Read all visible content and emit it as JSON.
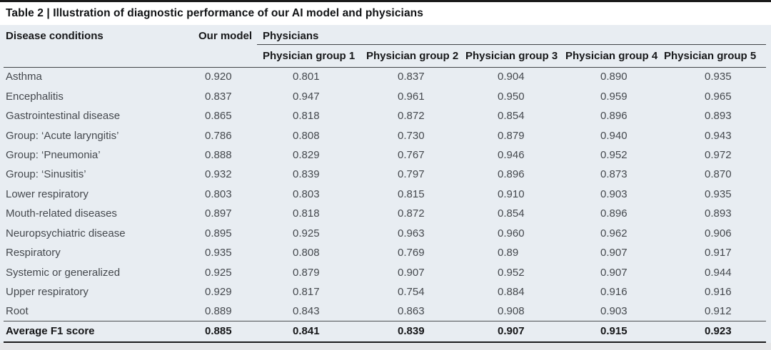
{
  "chart_data": {
    "type": "table",
    "title": "Table 2 | Illustration of diagnostic performance of our AI model and physicians",
    "columns": {
      "disease": "Disease conditions",
      "our_model": "Our model",
      "physicians": "Physicians",
      "physician_groups": [
        "Physician group 1",
        "Physician group 2",
        "Physician group 3",
        "Physician group 4",
        "Physician group 5"
      ]
    },
    "rows": [
      {
        "condition": "Asthma",
        "values": [
          "0.920",
          "0.801",
          "0.837",
          "0.904",
          "0.890",
          "0.935"
        ]
      },
      {
        "condition": "Encephalitis",
        "values": [
          "0.837",
          "0.947",
          "0.961",
          "0.950",
          "0.959",
          "0.965"
        ]
      },
      {
        "condition": "Gastrointestinal disease",
        "values": [
          "0.865",
          "0.818",
          "0.872",
          "0.854",
          "0.896",
          "0.893"
        ]
      },
      {
        "condition": "Group: ‘Acute laryngitis’",
        "values": [
          "0.786",
          "0.808",
          "0.730",
          "0.879",
          "0.940",
          "0.943"
        ]
      },
      {
        "condition": "Group: ‘Pneumonia’",
        "values": [
          "0.888",
          "0.829",
          "0.767",
          "0.946",
          "0.952",
          "0.972"
        ]
      },
      {
        "condition": "Group: ‘Sinusitis’",
        "values": [
          "0.932",
          "0.839",
          "0.797",
          "0.896",
          "0.873",
          "0.870"
        ]
      },
      {
        "condition": "Lower respiratory",
        "values": [
          "0.803",
          "0.803",
          "0.815",
          "0.910",
          "0.903",
          "0.935"
        ]
      },
      {
        "condition": "Mouth-related diseases",
        "values": [
          "0.897",
          "0.818",
          "0.872",
          "0.854",
          "0.896",
          "0.893"
        ]
      },
      {
        "condition": "Neuropsychiatric disease",
        "values": [
          "0.895",
          "0.925",
          "0.963",
          "0.960",
          "0.962",
          "0.906"
        ]
      },
      {
        "condition": "Respiratory",
        "values": [
          "0.935",
          "0.808",
          "0.769",
          "0.89",
          "0.907",
          "0.917"
        ]
      },
      {
        "condition": "Systemic or generalized",
        "values": [
          "0.925",
          "0.879",
          "0.907",
          "0.952",
          "0.907",
          "0.944"
        ]
      },
      {
        "condition": "Upper respiratory",
        "values": [
          "0.929",
          "0.817",
          "0.754",
          "0.884",
          "0.916",
          "0.916"
        ]
      },
      {
        "condition": "Root",
        "values": [
          "0.889",
          "0.843",
          "0.863",
          "0.908",
          "0.903",
          "0.912"
        ]
      }
    ],
    "footer": {
      "label": "Average F1 score",
      "values": [
        "0.885",
        "0.841",
        "0.839",
        "0.907",
        "0.915",
        "0.923"
      ]
    }
  },
  "colors": {
    "table_background": "#e8edf2",
    "title_background": "#ffffff",
    "dark_rule": "#1b1b1b",
    "thin_rule": "#3f4346",
    "header_text": "#17181a",
    "body_text": "#45494e"
  }
}
